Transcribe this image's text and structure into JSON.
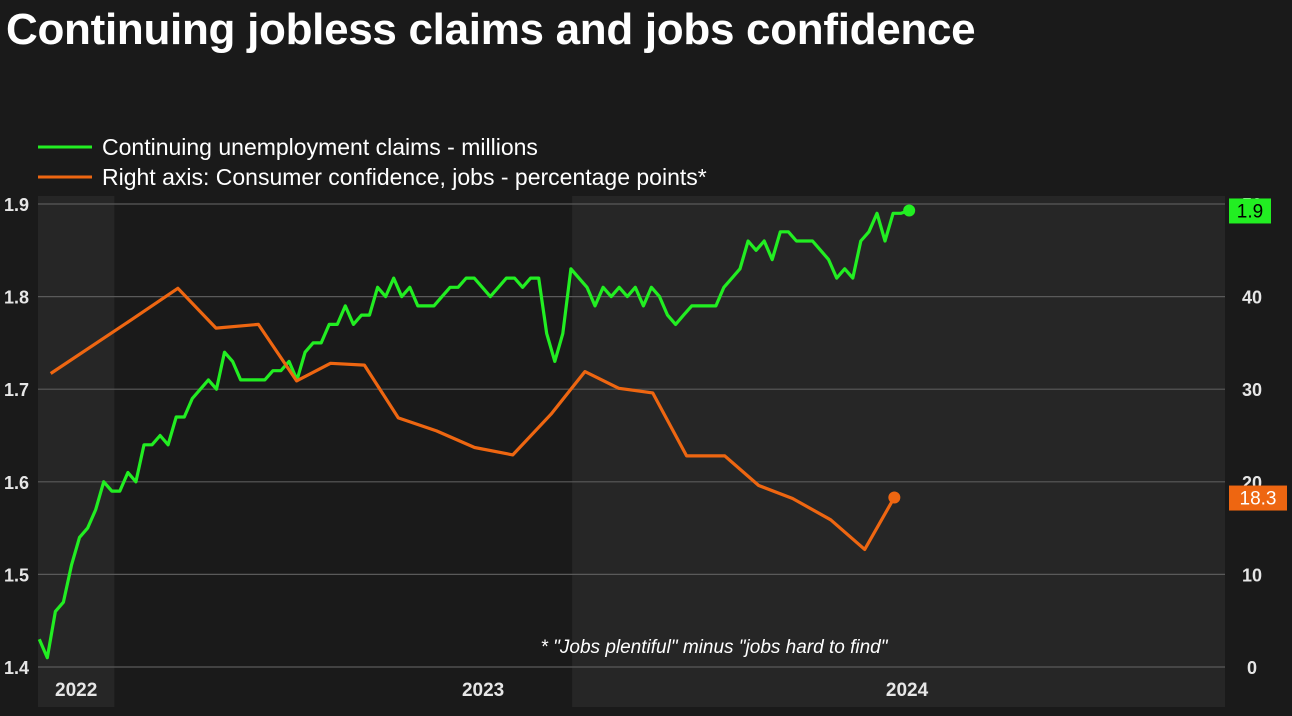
{
  "title": "Continuing jobless claims and jobs confidence",
  "chart_data": {
    "type": "line",
    "title": "Continuing jobless claims and jobs confidence",
    "legend": {
      "placement": "top-left",
      "entries": [
        {
          "label": "Continuing unemployment claims - millions",
          "color": "#22ee22"
        },
        {
          "label": "Right axis: Consumer confidence, jobs - percentage points*",
          "color": "#ee6611"
        }
      ]
    },
    "left_axis": {
      "ylim": [
        1.4,
        1.9
      ],
      "ticks": [
        "1.4",
        "1.5",
        "1.6",
        "1.7",
        "1.8",
        "1.9"
      ]
    },
    "right_axis": {
      "ylim": [
        0,
        50
      ],
      "ticks": [
        "0",
        "10",
        "20",
        "30",
        "40",
        "50"
      ]
    },
    "x_axis": {
      "range": [
        2021.95,
        2024.75
      ],
      "ticks": [
        {
          "label": "2022",
          "x": 2022.04
        },
        {
          "label": "2023",
          "x": 2023.0
        },
        {
          "label": "2024",
          "x": 2024.0
        }
      ]
    },
    "grid": true,
    "shaded_years": [
      [
        2021.95,
        2022.13
      ],
      [
        2023.21,
        2024.75
      ]
    ],
    "series": [
      {
        "name": "Continuing unemployment claims - millions",
        "axis": "left",
        "color": "#22ee22",
        "last_label": "1.9",
        "points": [
          [
            2021.953,
            1.43
          ],
          [
            2021.972,
            1.41
          ],
          [
            2021.991,
            1.46
          ],
          [
            2022.01,
            1.47
          ],
          [
            2022.029,
            1.51
          ],
          [
            2022.048,
            1.54
          ],
          [
            2022.067,
            1.55
          ],
          [
            2022.086,
            1.57
          ],
          [
            2022.105,
            1.6
          ],
          [
            2022.124,
            1.59
          ],
          [
            2022.143,
            1.59
          ],
          [
            2022.162,
            1.61
          ],
          [
            2022.181,
            1.6
          ],
          [
            2022.2,
            1.64
          ],
          [
            2022.219,
            1.64
          ],
          [
            2022.238,
            1.65
          ],
          [
            2022.257,
            1.64
          ],
          [
            2022.276,
            1.67
          ],
          [
            2022.295,
            1.67
          ],
          [
            2022.314,
            1.69
          ],
          [
            2022.333,
            1.7
          ],
          [
            2022.352,
            1.71
          ],
          [
            2022.371,
            1.7
          ],
          [
            2022.39,
            1.74
          ],
          [
            2022.409,
            1.73
          ],
          [
            2022.428,
            1.71
          ],
          [
            2022.447,
            1.71
          ],
          [
            2022.466,
            1.71
          ],
          [
            2022.485,
            1.71
          ],
          [
            2022.504,
            1.72
          ],
          [
            2022.523,
            1.72
          ],
          [
            2022.542,
            1.73
          ],
          [
            2022.561,
            1.71
          ],
          [
            2022.58,
            1.74
          ],
          [
            2022.599,
            1.75
          ],
          [
            2022.618,
            1.75
          ],
          [
            2022.637,
            1.77
          ],
          [
            2022.656,
            1.77
          ],
          [
            2022.675,
            1.79
          ],
          [
            2022.694,
            1.77
          ],
          [
            2022.713,
            1.78
          ],
          [
            2022.732,
            1.78
          ],
          [
            2022.751,
            1.81
          ],
          [
            2022.77,
            1.8
          ],
          [
            2022.789,
            1.82
          ],
          [
            2022.808,
            1.8
          ],
          [
            2022.827,
            1.81
          ],
          [
            2022.846,
            1.79
          ],
          [
            2022.865,
            1.79
          ],
          [
            2022.884,
            1.79
          ],
          [
            2022.903,
            1.8
          ],
          [
            2022.922,
            1.81
          ],
          [
            2022.941,
            1.81
          ],
          [
            2022.96,
            1.82
          ],
          [
            2022.979,
            1.82
          ],
          [
            2022.998,
            1.81
          ],
          [
            2023.017,
            1.8
          ],
          [
            2023.036,
            1.81
          ],
          [
            2023.055,
            1.82
          ],
          [
            2023.074,
            1.82
          ],
          [
            2023.093,
            1.81
          ],
          [
            2023.112,
            1.82
          ],
          [
            2023.131,
            1.82
          ],
          [
            2023.15,
            1.76
          ],
          [
            2023.169,
            1.73
          ],
          [
            2023.188,
            1.76
          ],
          [
            2023.207,
            1.83
          ],
          [
            2023.226,
            1.82
          ],
          [
            2023.245,
            1.81
          ],
          [
            2023.264,
            1.79
          ],
          [
            2023.283,
            1.81
          ],
          [
            2023.302,
            1.8
          ],
          [
            2023.321,
            1.81
          ],
          [
            2023.34,
            1.8
          ],
          [
            2023.359,
            1.81
          ],
          [
            2023.378,
            1.79
          ],
          [
            2023.397,
            1.81
          ],
          [
            2023.416,
            1.8
          ],
          [
            2023.435,
            1.78
          ],
          [
            2023.454,
            1.77
          ],
          [
            2023.473,
            1.78
          ],
          [
            2023.492,
            1.79
          ],
          [
            2023.511,
            1.79
          ],
          [
            2023.53,
            1.79
          ],
          [
            2023.549,
            1.79
          ],
          [
            2023.568,
            1.81
          ],
          [
            2023.587,
            1.82
          ],
          [
            2023.606,
            1.83
          ],
          [
            2023.625,
            1.86
          ],
          [
            2023.644,
            1.85
          ],
          [
            2023.663,
            1.86
          ],
          [
            2023.682,
            1.84
          ],
          [
            2023.701,
            1.87
          ],
          [
            2023.72,
            1.87
          ],
          [
            2023.739,
            1.86
          ],
          [
            2023.758,
            1.86
          ],
          [
            2023.777,
            1.86
          ],
          [
            2023.796,
            1.85
          ],
          [
            2023.815,
            1.84
          ],
          [
            2023.834,
            1.82
          ],
          [
            2023.853,
            1.83
          ],
          [
            2023.872,
            1.82
          ],
          [
            2023.891,
            1.86
          ],
          [
            2023.91,
            1.87
          ],
          [
            2023.929,
            1.89
          ],
          [
            2023.948,
            1.86
          ],
          [
            2023.967,
            1.89
          ],
          [
            2023.986,
            1.89
          ],
          [
            2024.005,
            1.893
          ]
        ]
      },
      {
        "name": "Right axis: Consumer confidence, jobs - percentage points*",
        "axis": "right",
        "color": "#ee6611",
        "last_label": "18.3",
        "points": [
          [
            2021.98,
            31.7
          ],
          [
            2022.17,
            37.5
          ],
          [
            2022.28,
            40.9
          ],
          [
            2022.37,
            36.6
          ],
          [
            2022.47,
            37.0
          ],
          [
            2022.56,
            30.9
          ],
          [
            2022.64,
            32.8
          ],
          [
            2022.72,
            32.6
          ],
          [
            2022.8,
            26.9
          ],
          [
            2022.89,
            25.5
          ],
          [
            2022.98,
            23.7
          ],
          [
            2023.07,
            22.9
          ],
          [
            2023.16,
            27.3
          ],
          [
            2023.24,
            31.9
          ],
          [
            2023.32,
            30.1
          ],
          [
            2023.4,
            29.6
          ],
          [
            2023.48,
            22.8
          ],
          [
            2023.57,
            22.8
          ],
          [
            2023.65,
            19.6
          ],
          [
            2023.73,
            18.2
          ],
          [
            2023.82,
            15.9
          ],
          [
            2023.9,
            12.7
          ],
          [
            2023.97,
            18.3
          ]
        ]
      }
    ],
    "annotations": [
      "* \"Jobs plentiful\" minus \"jobs hard to find\""
    ]
  }
}
